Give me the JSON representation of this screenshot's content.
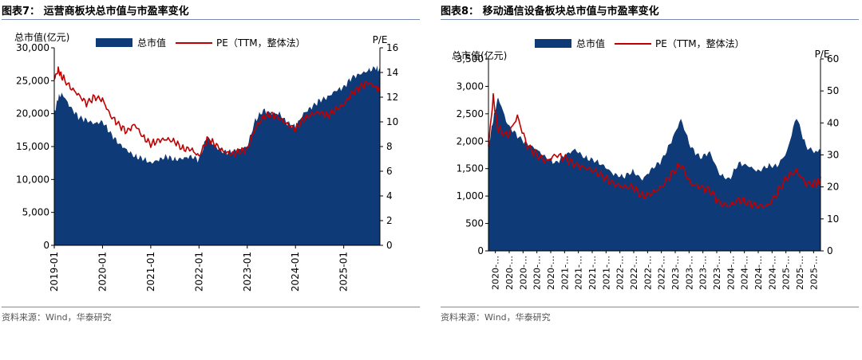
{
  "charts": [
    {
      "figure_title": "图表7：  运营商板块总市值与市盈率变化",
      "source": "资料来源：Wind，华泰研究",
      "chart_data": {
        "type": "area",
        "ylabel_left": "总市值(亿元)",
        "ylabel_right": "P/E",
        "legend": [
          "总市值",
          "PE（TTM，整体法）"
        ],
        "legend_position": "top",
        "grid": false,
        "xlim": [
          "2019-01",
          "2025-10"
        ],
        "ylim_left": [
          0,
          30000
        ],
        "ylim_right": [
          0,
          16
        ],
        "yticks_left": [
          "0",
          "5,000",
          "10,000",
          "15,000",
          "20,000",
          "25,000",
          "30,000"
        ],
        "yticks_right": [
          "0",
          "2",
          "4",
          "6",
          "8",
          "10",
          "12",
          "14",
          "16"
        ],
        "xticks": [
          "2019-01",
          "2020-01",
          "2021-01",
          "2022-01",
          "2023-01",
          "2024-01",
          "2025-01"
        ],
        "colors": {
          "area": "#0e3a78",
          "line": "#c00000"
        },
        "series": [
          {
            "name": "总市值",
            "x": [
              "2019-01",
              "2019-02",
              "2019-03",
              "2019-05",
              "2019-07",
              "2019-09",
              "2019-11",
              "2020-01",
              "2020-03",
              "2020-05",
              "2020-07",
              "2020-09",
              "2020-11",
              "2021-01",
              "2021-03",
              "2021-05",
              "2021-07",
              "2021-09",
              "2021-11",
              "2022-01",
              "2022-03",
              "2022-05",
              "2022-07",
              "2022-09",
              "2022-11",
              "2023-01",
              "2023-03",
              "2023-05",
              "2023-07",
              "2023-09",
              "2023-11",
              "2024-01",
              "2024-03",
              "2024-05",
              "2024-07",
              "2024-09",
              "2024-11",
              "2025-01",
              "2025-03",
              "2025-05",
              "2025-07",
              "2025-09",
              "2025-10"
            ],
            "values": [
              20000,
              22500,
              23000,
              21000,
              19500,
              19000,
              18500,
              18800,
              17000,
              15500,
              14500,
              13500,
              13200,
              12500,
              13000,
              13500,
              13000,
              13200,
              13500,
              13000,
              16500,
              15000,
              14200,
              14200,
              14500,
              15000,
              19000,
              20500,
              20000,
              20000,
              18500,
              18000,
              20000,
              21000,
              22000,
              22500,
              23500,
              24000,
              25500,
              26000,
              26500,
              27000,
              26500
            ]
          },
          {
            "name": "PE（TTM，整体法）",
            "x": [
              "2019-01",
              "2019-02",
              "2019-03",
              "2019-05",
              "2019-07",
              "2019-09",
              "2019-11",
              "2020-01",
              "2020-03",
              "2020-05",
              "2020-07",
              "2020-09",
              "2020-11",
              "2021-01",
              "2021-03",
              "2021-05",
              "2021-07",
              "2021-09",
              "2021-11",
              "2022-01",
              "2022-03",
              "2022-05",
              "2022-07",
              "2022-09",
              "2022-11",
              "2023-01",
              "2023-03",
              "2023-05",
              "2023-07",
              "2023-09",
              "2023-11",
              "2024-01",
              "2024-03",
              "2024-05",
              "2024-07",
              "2024-09",
              "2024-11",
              "2025-01",
              "2025-03",
              "2025-05",
              "2025-07",
              "2025-09",
              "2025-10"
            ],
            "values": [
              13.5,
              14.2,
              13.6,
              12.8,
              12.2,
              11.5,
              12.0,
              11.8,
              10.5,
              9.8,
              9.2,
              9.8,
              8.8,
              8.2,
              8.5,
              8.6,
              8.4,
              7.8,
              7.8,
              7.2,
              8.6,
              8.2,
              7.6,
              7.4,
              7.6,
              7.8,
              9.5,
              10.4,
              10.6,
              10.3,
              9.8,
              9.4,
              10.2,
              10.6,
              10.8,
              10.5,
              11.0,
              11.4,
              12.3,
              12.8,
              13.2,
              12.8,
              12.5
            ]
          }
        ]
      }
    },
    {
      "figure_title": "图表8：  移动通信设备板块总市值与市盈率变化",
      "source": "资料来源：Wind，华泰研究",
      "chart_data": {
        "type": "area",
        "ylabel_left": "总市值(亿元)",
        "ylabel_right": "P/E",
        "legend": [
          "总市值",
          "PE（TTM，整体法）"
        ],
        "legend_position": "top",
        "grid": false,
        "xlim": [
          "2020-01",
          "2025-10"
        ],
        "ylim_left": [
          0,
          3500
        ],
        "ylim_right": [
          0,
          60
        ],
        "yticks_left": [
          "0",
          "500",
          "1,000",
          "1,500",
          "2,000",
          "2,500",
          "3,000",
          "3,500"
        ],
        "yticks_right": [
          "0",
          "10",
          "20",
          "30",
          "40",
          "50",
          "60"
        ],
        "xticks": [
          "2020-…",
          "2020-…",
          "2020-…",
          "2020-…",
          "2020-…",
          "2021-…",
          "2021-…",
          "2021-…",
          "2021-…",
          "2022-…",
          "2022-…",
          "2022-…",
          "2022-…",
          "2023-…",
          "2023-…",
          "2023-…",
          "2023-…",
          "2024-…",
          "2024-…",
          "2024-…",
          "2024-…",
          "2025-…",
          "2025-…",
          "2025-…"
        ],
        "colors": {
          "area": "#0e3a78",
          "line": "#c00000"
        },
        "series": [
          {
            "name": "总市值",
            "x": [
              "2020-01",
              "2020-02",
              "2020-03",
              "2020-05",
              "2020-07",
              "2020-09",
              "2020-11",
              "2021-01",
              "2021-03",
              "2021-05",
              "2021-07",
              "2021-09",
              "2021-11",
              "2022-01",
              "2022-03",
              "2022-05",
              "2022-07",
              "2022-09",
              "2022-11",
              "2023-01",
              "2023-03",
              "2023-05",
              "2023-07",
              "2023-09",
              "2023-11",
              "2024-01",
              "2024-03",
              "2024-05",
              "2024-07",
              "2024-09",
              "2024-11",
              "2025-01",
              "2025-03",
              "2025-05",
              "2025-07",
              "2025-09",
              "2025-10"
            ],
            "values": [
              1900,
              2400,
              2800,
              2300,
              2100,
              1950,
              1850,
              1700,
              1600,
              1750,
              1850,
              1700,
              1650,
              1550,
              1400,
              1350,
              1450,
              1300,
              1500,
              1650,
              2000,
              2400,
              1900,
              1700,
              1800,
              1400,
              1300,
              1600,
              1550,
              1450,
              1550,
              1550,
              1800,
              2450,
              1900,
              1800,
              1850
            ]
          },
          {
            "name": "PE（TTM，整体法）",
            "x": [
              "2020-01",
              "2020-02",
              "2020-03",
              "2020-05",
              "2020-07",
              "2020-09",
              "2020-11",
              "2021-01",
              "2021-03",
              "2021-05",
              "2021-07",
              "2021-09",
              "2021-11",
              "2022-01",
              "2022-03",
              "2022-05",
              "2022-07",
              "2022-09",
              "2022-11",
              "2023-01",
              "2023-03",
              "2023-05",
              "2023-07",
              "2023-09",
              "2023-11",
              "2024-01",
              "2024-03",
              "2024-05",
              "2024-07",
              "2024-09",
              "2024-11",
              "2025-01",
              "2025-03",
              "2025-05",
              "2025-07",
              "2025-09",
              "2025-10"
            ],
            "values": [
              33,
              48,
              38,
              36,
              42,
              33,
              30,
              28,
              30,
              29,
              27,
              26,
              25,
              23,
              21,
              20,
              20,
              17,
              18,
              20,
              24,
              27,
              21,
              20,
              19,
              15,
              14,
              16,
              15,
              14,
              14,
              18,
              23,
              25,
              21,
              21,
              22
            ]
          }
        ]
      }
    }
  ]
}
